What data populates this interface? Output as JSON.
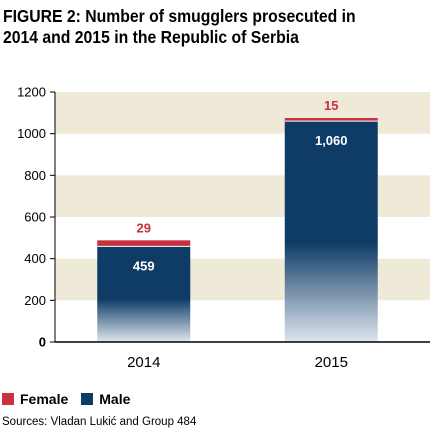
{
  "title": "FIGURE 2: Number of smugglers prosecuted in 2014 and 2015 in the Republic of Serbia",
  "source": "Sources: Vladan Lukić and Group 484",
  "colors": {
    "female": "#c8313f",
    "male": "#0e3c66",
    "band": "#efe9d8",
    "axis": "#000000"
  },
  "legend": [
    {
      "name": "Female",
      "color": "#c8313f"
    },
    {
      "name": "Male",
      "color": "#0e3c66"
    }
  ],
  "chart_data": {
    "type": "bar",
    "stacked": true,
    "categories": [
      "2014",
      "2015"
    ],
    "series": [
      {
        "name": "Male",
        "values": [
          459,
          1060
        ],
        "labels": [
          "459",
          "1,060"
        ]
      },
      {
        "name": "Female",
        "values": [
          29,
          15
        ],
        "labels": [
          "29",
          "15"
        ]
      }
    ],
    "ylim": [
      0,
      1200
    ],
    "yticks": [
      "0",
      "200",
      "400",
      "600",
      "800",
      "1000",
      "1200"
    ],
    "grid": "alternating bands",
    "legend_position": "bottom-left"
  }
}
